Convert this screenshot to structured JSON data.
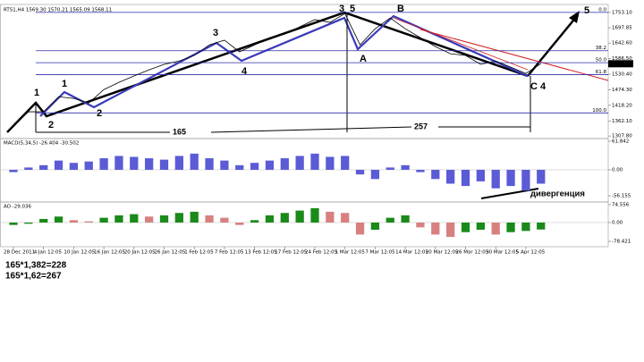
{
  "chart_data": [
    {
      "type": "line",
      "title": "RTS1,H4 1569.30 1570.21 1565.09 1568.11",
      "categories": [
        "28 Dec 2011",
        null,
        "4 Jan 12:05",
        null,
        "10 Jan 12:05",
        null,
        "16 Jan 12:05",
        null,
        "20 Jan 12:05",
        null,
        "26 Jan 12:05",
        null,
        "1 Feb 12:05",
        null,
        "7 Feb 12:05",
        null,
        "13 Feb 12:05",
        null,
        "17 Feb 12:05",
        null,
        "24 Feb 12:05",
        null,
        "1 Mar 12:05",
        null,
        "7 Mar 12:05",
        null,
        "14 Mar 12:05",
        null,
        "20 Mar 12:05",
        null,
        "26 Mar 12:05",
        null,
        "30 Mar 12:05",
        null,
        "5 Apr 12:05",
        null
      ],
      "values": [
        1346,
        1395,
        1395,
        1449,
        1443,
        1427,
        1475,
        1501,
        1524,
        1546,
        1566,
        1578,
        1598,
        1636,
        1653,
        1611,
        1636,
        1662,
        1675,
        1701,
        1727,
        1717,
        1749,
        1636,
        1694,
        1733,
        1694,
        1662,
        1630,
        1604,
        1598,
        1566,
        1578,
        1556,
        1533,
        1568
      ],
      "color": "#000000",
      "last_value": 1568.11,
      "ylim": [
        1305,
        1772
      ],
      "yticks": [
        {
          "value": 1753.1,
          "label": "1753.10"
        },
        {
          "value": 1697.85,
          "label": "1697.85"
        },
        {
          "value": 1642.6,
          "label": "1642.60"
        },
        {
          "value": 1586.5,
          "label": "1586.50"
        },
        {
          "value": 1530.4,
          "label": "1530.40"
        },
        {
          "value": 1474.3,
          "label": "1474.30"
        },
        {
          "value": 1418.2,
          "label": "1418.20"
        },
        {
          "value": 1362.1,
          "label": "1362.10"
        },
        {
          "value": 1307.8,
          "label": "1307.80"
        }
      ],
      "fib_levels": {
        "labels": [
          "0.0",
          "38.2",
          "50.0",
          "61.8",
          "100.0"
        ],
        "prices": [
          1753,
          1615,
          1572,
          1529,
          1391
        ],
        "color": "#2a2aa8"
      },
      "annotations": [
        "1",
        "2",
        "1",
        "2",
        "3",
        "4",
        "3",
        "5",
        "A",
        "B",
        "C",
        "4",
        "5",
        "165",
        "257",
        "дивергенция"
      ]
    },
    {
      "type": "bar",
      "title": "MACD(5,34,5) -26.404 -30.502",
      "values": [
        -5,
        5,
        10,
        20,
        15,
        18,
        25,
        30,
        28,
        25,
        22,
        30,
        35,
        25,
        20,
        10,
        15,
        20,
        25,
        30,
        35,
        28,
        30,
        -10,
        -20,
        5,
        10,
        -5,
        -20,
        -30,
        -35,
        -25,
        -40,
        -35,
        -45,
        -30
      ],
      "color": "#5b5bd6",
      "ylim": [
        -67.7,
        65.7
      ],
      "yticks": [
        61.842,
        {
          "value": 0,
          "label": "0.00"
        },
        -56.155
      ]
    },
    {
      "type": "bar",
      "title": "AO -29.036",
      "values": [
        -10,
        -5,
        15,
        25,
        10,
        5,
        20,
        30,
        35,
        25,
        30,
        40,
        45,
        30,
        20,
        -10,
        10,
        30,
        40,
        50,
        60,
        45,
        40,
        -50,
        -30,
        20,
        30,
        -20,
        -50,
        -60,
        -40,
        -30,
        -50,
        -40,
        -35,
        -29
      ],
      "up_color": "#1a8a1a",
      "down_color": "#d88080",
      "ylim": [
        -97,
        82
      ],
      "yticks": [
        74.556,
        {
          "value": 0,
          "label": "0.00"
        },
        -78.421
      ]
    }
  ],
  "notes": [
    "165*1,382=228",
    "165*1,62=267"
  ]
}
